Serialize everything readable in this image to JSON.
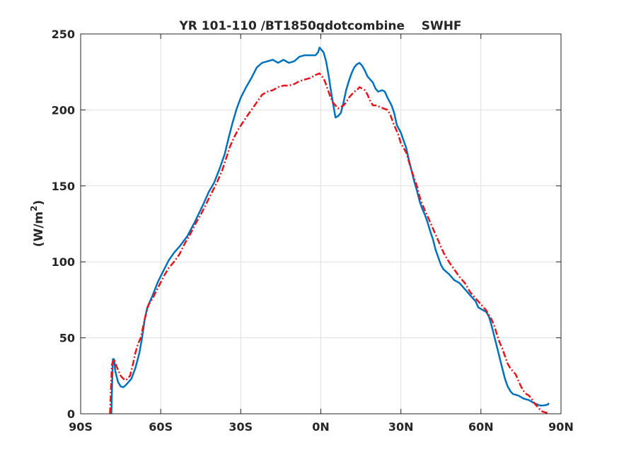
{
  "chart_data": {
    "type": "line",
    "title": "YR 101-110 /BT1850qdotcombine    SWHF",
    "xlabel": "",
    "ylabel_main": "(W/m",
    "ylabel_sup": "2",
    "ylabel_end": ")",
    "xlim": [
      -90,
      90
    ],
    "ylim": [
      0,
      250
    ],
    "x_ticks": [
      -90,
      -60,
      -30,
      0,
      30,
      60,
      90
    ],
    "x_tick_labels": [
      "90S",
      "60S",
      "30S",
      "0N",
      "30N",
      "60N",
      "90N"
    ],
    "y_ticks": [
      0,
      50,
      100,
      150,
      200,
      250
    ],
    "y_tick_labels": [
      "0",
      "50",
      "100",
      "150",
      "200",
      "250"
    ],
    "grid": true,
    "colors": {
      "blue": "#0072bd",
      "red": "#e8141a"
    },
    "series": [
      {
        "style": "solid",
        "color": "#0072bd",
        "points": [
          [
            -78.5,
            0
          ],
          [
            -78.2,
            20
          ],
          [
            -77.9,
            36
          ],
          [
            -77.5,
            36
          ],
          [
            -77.0,
            28
          ],
          [
            -76.0,
            21
          ],
          [
            -75.0,
            18
          ],
          [
            -74.0,
            17.5
          ],
          [
            -73.0,
            19
          ],
          [
            -71.0,
            23
          ],
          [
            -69.5,
            30
          ],
          [
            -68.0,
            40
          ],
          [
            -67.0,
            50
          ],
          [
            -66.0,
            62
          ],
          [
            -65.0,
            70
          ],
          [
            -63.0,
            78
          ],
          [
            -61.0,
            87
          ],
          [
            -59.0,
            94
          ],
          [
            -57.0,
            101
          ],
          [
            -55.0,
            106
          ],
          [
            -53.0,
            110
          ],
          [
            -50.0,
            117
          ],
          [
            -47.0,
            127
          ],
          [
            -44.0,
            138
          ],
          [
            -42.0,
            146
          ],
          [
            -40.0,
            152
          ],
          [
            -38.0,
            161
          ],
          [
            -36.0,
            171
          ],
          [
            -34.5,
            182
          ],
          [
            -33.0,
            192
          ],
          [
            -31.5,
            201
          ],
          [
            -30.0,
            208
          ],
          [
            -28.0,
            215
          ],
          [
            -26.0,
            221
          ],
          [
            -24.0,
            228
          ],
          [
            -22.0,
            231
          ],
          [
            -20.0,
            232
          ],
          [
            -18.0,
            233
          ],
          [
            -16.0,
            231
          ],
          [
            -14.0,
            233
          ],
          [
            -12.0,
            231
          ],
          [
            -10.0,
            232
          ],
          [
            -8.0,
            235
          ],
          [
            -6.0,
            236
          ],
          [
            -4.0,
            236
          ],
          [
            -2.0,
            236
          ],
          [
            -1.0,
            238
          ],
          [
            -0.5,
            241
          ],
          [
            0.0,
            240
          ],
          [
            1.0,
            238
          ],
          [
            2.0,
            232
          ],
          [
            3.0,
            222
          ],
          [
            4.0,
            210
          ],
          [
            5.0,
            200
          ],
          [
            5.5,
            195
          ],
          [
            6.5,
            196
          ],
          [
            7.5,
            198
          ],
          [
            8.5,
            205
          ],
          [
            9.5,
            213
          ],
          [
            10.5,
            219
          ],
          [
            11.5,
            224
          ],
          [
            12.5,
            228
          ],
          [
            13.5,
            230
          ],
          [
            14.5,
            231
          ],
          [
            15.5,
            229
          ],
          [
            16.5,
            226
          ],
          [
            17.5,
            222
          ],
          [
            18.5,
            220
          ],
          [
            19.5,
            218
          ],
          [
            20.5,
            214
          ],
          [
            21.5,
            212
          ],
          [
            23.0,
            213
          ],
          [
            24.0,
            212
          ],
          [
            25.0,
            208
          ],
          [
            26.5,
            203
          ],
          [
            27.5,
            198
          ],
          [
            28.5,
            190
          ],
          [
            30.0,
            185
          ],
          [
            31.0,
            180
          ],
          [
            32.0,
            175
          ],
          [
            33.0,
            167
          ],
          [
            34.0,
            160
          ],
          [
            35.0,
            153
          ],
          [
            36.0,
            147
          ],
          [
            37.0,
            140
          ],
          [
            38.0,
            135
          ],
          [
            39.0,
            131
          ],
          [
            40.0,
            126
          ],
          [
            41.0,
            120
          ],
          [
            42.0,
            115
          ],
          [
            43.0,
            108
          ],
          [
            44.0,
            103
          ],
          [
            45.0,
            98
          ],
          [
            46.0,
            95
          ],
          [
            48.0,
            92
          ],
          [
            50.0,
            88
          ],
          [
            52.0,
            86
          ],
          [
            54.0,
            82
          ],
          [
            56.0,
            78
          ],
          [
            58.0,
            74
          ],
          [
            59.0,
            70
          ],
          [
            60.0,
            69
          ],
          [
            61.0,
            68
          ],
          [
            62.0,
            67
          ],
          [
            63.0,
            64
          ],
          [
            64.0,
            58
          ],
          [
            65.0,
            51
          ],
          [
            66.0,
            44
          ],
          [
            67.0,
            37
          ],
          [
            68.0,
            30
          ],
          [
            69.0,
            23
          ],
          [
            70.0,
            18
          ],
          [
            71.0,
            15
          ],
          [
            72.0,
            13
          ],
          [
            74.0,
            12
          ],
          [
            76.0,
            10
          ],
          [
            78.0,
            9
          ],
          [
            80.0,
            7
          ],
          [
            82.0,
            5.5
          ],
          [
            83.5,
            5.5
          ],
          [
            85.0,
            6
          ],
          [
            85.5,
            7
          ]
        ]
      },
      {
        "style": "dashdot",
        "color": "#e8141a",
        "points": [
          [
            -79.0,
            0
          ],
          [
            -78.6,
            18
          ],
          [
            -78.3,
            32
          ],
          [
            -78.0,
            34
          ],
          [
            -77.5,
            36
          ],
          [
            -77.0,
            33
          ],
          [
            -76.0,
            29
          ],
          [
            -75.0,
            25
          ],
          [
            -74.0,
            23
          ],
          [
            -73.0,
            22
          ],
          [
            -71.5,
            25
          ],
          [
            -70.5,
            32
          ],
          [
            -69.5,
            40
          ],
          [
            -68.5,
            46
          ],
          [
            -67.5,
            50
          ],
          [
            -66.5,
            58
          ],
          [
            -65.5,
            66
          ],
          [
            -64.5,
            72
          ],
          [
            -63.0,
            76
          ],
          [
            -61.0,
            83
          ],
          [
            -59.0,
            90
          ],
          [
            -57.0,
            96
          ],
          [
            -55.0,
            100
          ],
          [
            -53.0,
            105
          ],
          [
            -51.0,
            112
          ],
          [
            -49.0,
            118
          ],
          [
            -47.0,
            125
          ],
          [
            -45.0,
            131
          ],
          [
            -43.0,
            138
          ],
          [
            -41.0,
            145
          ],
          [
            -39.0,
            152
          ],
          [
            -37.0,
            160
          ],
          [
            -35.5,
            168
          ],
          [
            -34.0,
            176
          ],
          [
            -32.5,
            182
          ],
          [
            -31.0,
            187
          ],
          [
            -29.5,
            191
          ],
          [
            -28.0,
            195
          ],
          [
            -26.0,
            200
          ],
          [
            -24.0,
            205
          ],
          [
            -22.0,
            210
          ],
          [
            -20.0,
            212
          ],
          [
            -18.0,
            213
          ],
          [
            -16.0,
            215
          ],
          [
            -14.0,
            216
          ],
          [
            -12.0,
            216
          ],
          [
            -10.0,
            217
          ],
          [
            -8.0,
            219
          ],
          [
            -6.0,
            220
          ],
          [
            -4.0,
            221
          ],
          [
            -2.0,
            223
          ],
          [
            -0.5,
            224
          ],
          [
            0.5,
            222
          ],
          [
            1.5,
            219
          ],
          [
            2.5,
            214
          ],
          [
            3.5,
            209
          ],
          [
            4.5,
            205
          ],
          [
            5.5,
            203
          ],
          [
            6.5,
            201
          ],
          [
            7.5,
            202
          ],
          [
            8.5,
            203
          ],
          [
            9.5,
            205
          ],
          [
            10.5,
            208
          ],
          [
            11.5,
            210
          ],
          [
            12.5,
            212
          ],
          [
            13.5,
            213
          ],
          [
            14.5,
            215
          ],
          [
            15.5,
            214
          ],
          [
            16.5,
            213
          ],
          [
            17.5,
            210
          ],
          [
            18.5,
            206
          ],
          [
            19.5,
            203
          ],
          [
            21.0,
            203
          ],
          [
            22.0,
            202
          ],
          [
            23.5,
            201
          ],
          [
            25.0,
            200
          ],
          [
            26.0,
            197
          ],
          [
            27.0,
            192
          ],
          [
            28.0,
            188
          ],
          [
            29.0,
            184
          ],
          [
            30.0,
            178
          ],
          [
            31.0,
            175
          ],
          [
            32.0,
            172
          ],
          [
            33.0,
            166
          ],
          [
            34.0,
            160
          ],
          [
            35.0,
            155
          ],
          [
            36.0,
            150
          ],
          [
            37.0,
            143
          ],
          [
            38.0,
            138
          ],
          [
            39.0,
            134
          ],
          [
            40.0,
            130
          ],
          [
            41.0,
            126
          ],
          [
            42.0,
            122
          ],
          [
            43.0,
            118
          ],
          [
            44.0,
            114
          ],
          [
            45.0,
            110
          ],
          [
            46.0,
            106
          ],
          [
            48.0,
            100
          ],
          [
            50.0,
            95
          ],
          [
            52.0,
            90
          ],
          [
            54.0,
            86
          ],
          [
            56.0,
            80
          ],
          [
            58.0,
            76
          ],
          [
            60.0,
            72
          ],
          [
            61.0,
            70
          ],
          [
            62.0,
            68
          ],
          [
            63.0,
            65
          ],
          [
            64.0,
            62
          ],
          [
            65.0,
            58
          ],
          [
            66.0,
            52
          ],
          [
            67.0,
            47
          ],
          [
            68.0,
            43
          ],
          [
            69.0,
            38
          ],
          [
            70.0,
            33
          ],
          [
            71.0,
            30
          ],
          [
            72.0,
            28
          ],
          [
            73.0,
            26
          ],
          [
            74.0,
            22
          ],
          [
            75.0,
            18
          ],
          [
            76.0,
            15
          ],
          [
            77.0,
            13
          ],
          [
            78.0,
            12
          ],
          [
            79.0,
            10
          ],
          [
            80.0,
            7
          ],
          [
            81.0,
            5
          ],
          [
            82.0,
            3
          ],
          [
            83.0,
            1.5
          ],
          [
            84.0,
            1
          ],
          [
            85.0,
            0.5
          ]
        ]
      }
    ]
  }
}
